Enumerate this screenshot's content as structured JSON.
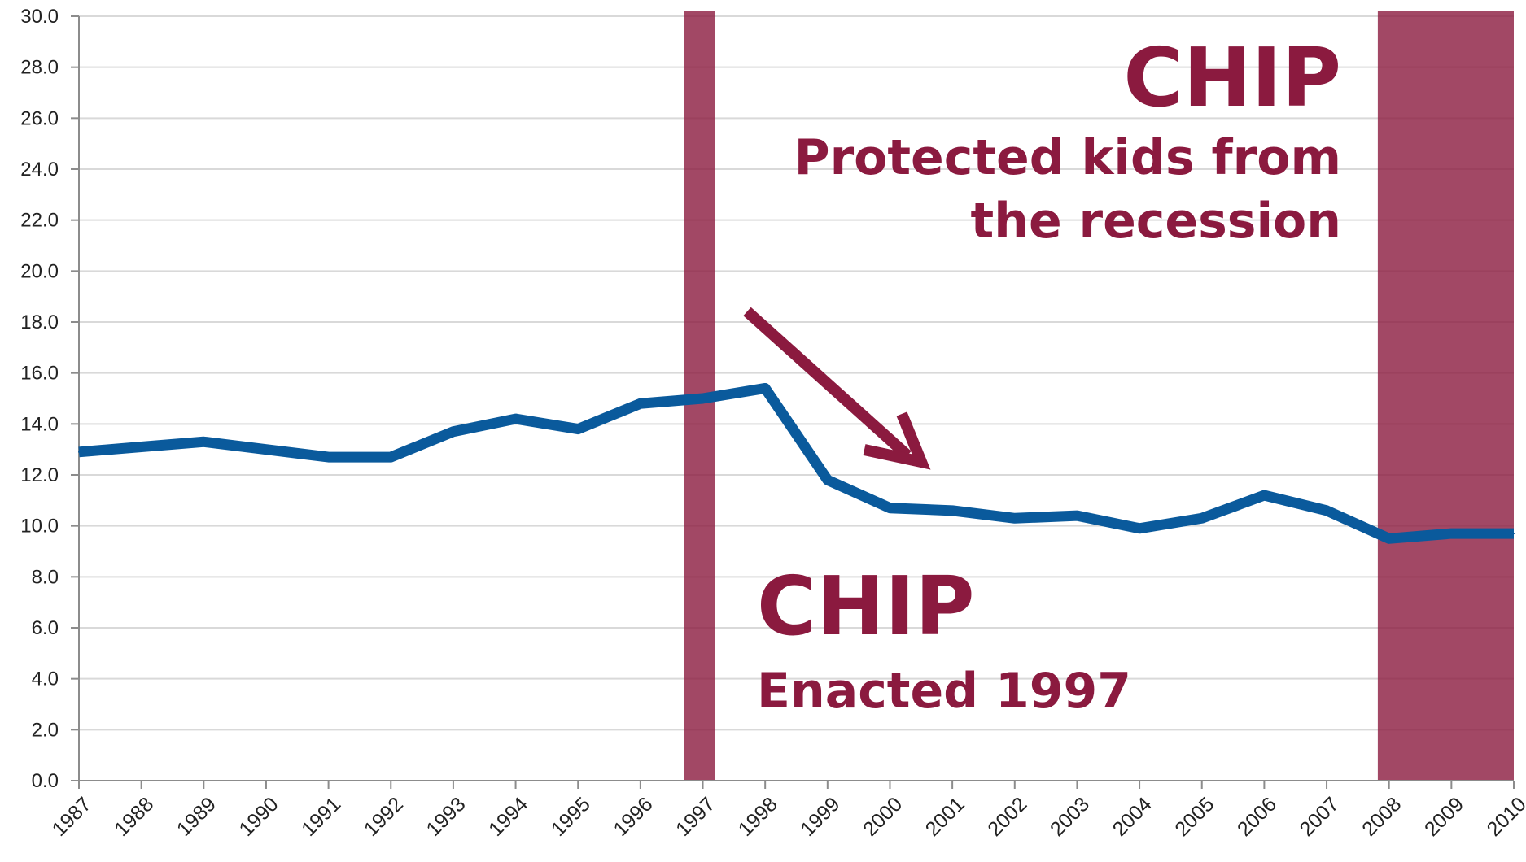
{
  "chart_data": {
    "type": "line",
    "title": "",
    "xlabel": "",
    "ylabel": "",
    "ylim": [
      0,
      30
    ],
    "yticks": [
      "0.0",
      "2.0",
      "4.0",
      "6.0",
      "8.0",
      "10.0",
      "12.0",
      "14.0",
      "16.0",
      "18.0",
      "20.0",
      "22.0",
      "24.0",
      "26.0",
      "28.0",
      "30.0"
    ],
    "x": [
      "1987",
      "1988",
      "1989",
      "1990",
      "1991",
      "1992",
      "1993",
      "1994",
      "1995",
      "1996",
      "1997",
      "1998",
      "1999",
      "2000",
      "2001",
      "2002",
      "2003",
      "2004",
      "2005",
      "2006",
      "2007",
      "2008",
      "2009",
      "2010"
    ],
    "series": [
      {
        "values": [
          12.9,
          13.1,
          13.3,
          13.0,
          12.7,
          12.7,
          13.7,
          14.2,
          13.8,
          14.8,
          15.0,
          15.4,
          11.8,
          10.7,
          10.6,
          10.3,
          10.4,
          9.9,
          10.3,
          11.2,
          10.6,
          9.5,
          9.7,
          9.7
        ],
        "color": "#0a5a9c"
      }
    ],
    "grid": true,
    "highlight_bands": [
      {
        "year": "1997",
        "color": "#8b1a3f"
      },
      {
        "year": "2008-2010",
        "color": "#8b1a3f"
      }
    ],
    "annotations": {
      "chip_top_title": "CHIP",
      "chip_top_line1": "Protected kids from",
      "chip_top_line2": "the recession",
      "chip_bottom_title": "CHIP",
      "chip_bottom_line1": "Enacted 1997"
    }
  }
}
